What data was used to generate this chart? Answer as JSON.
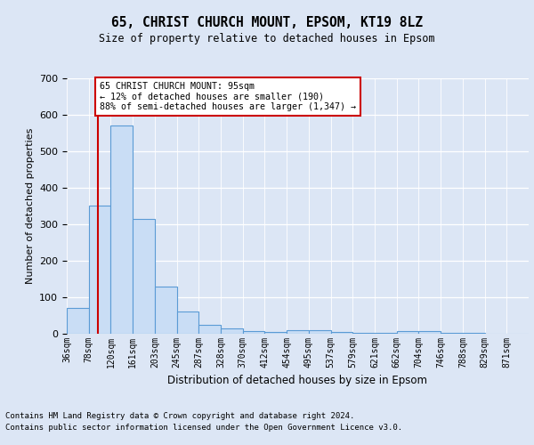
{
  "title1": "65, CHRIST CHURCH MOUNT, EPSOM, KT19 8LZ",
  "title2": "Size of property relative to detached houses in Epsom",
  "xlabel": "Distribution of detached houses by size in Epsom",
  "ylabel": "Number of detached properties",
  "bin_labels": [
    "36sqm",
    "78sqm",
    "120sqm",
    "161sqm",
    "203sqm",
    "245sqm",
    "287sqm",
    "328sqm",
    "370sqm",
    "412sqm",
    "454sqm",
    "495sqm",
    "537sqm",
    "579sqm",
    "621sqm",
    "662sqm",
    "704sqm",
    "746sqm",
    "788sqm",
    "829sqm",
    "871sqm"
  ],
  "bar_values": [
    70,
    350,
    570,
    315,
    130,
    60,
    25,
    15,
    8,
    5,
    10,
    10,
    5,
    3,
    2,
    8,
    8,
    3,
    2,
    1,
    1
  ],
  "bar_color": "#c9ddf5",
  "bar_edge_color": "#5b9bd5",
  "property_bin_index": 1.38,
  "property_line_color": "#cc0000",
  "annotation_text": "65 CHRIST CHURCH MOUNT: 95sqm\n← 12% of detached houses are smaller (190)\n88% of semi-detached houses are larger (1,347) →",
  "annotation_box_color": "#ffffff",
  "annotation_box_edge_color": "#cc0000",
  "ylim": [
    0,
    700
  ],
  "yticks": [
    0,
    100,
    200,
    300,
    400,
    500,
    600,
    700
  ],
  "footer1": "Contains HM Land Registry data © Crown copyright and database right 2024.",
  "footer2": "Contains public sector information licensed under the Open Government Licence v3.0.",
  "background_color": "#dce6f5",
  "plot_background_color": "#dce6f5"
}
